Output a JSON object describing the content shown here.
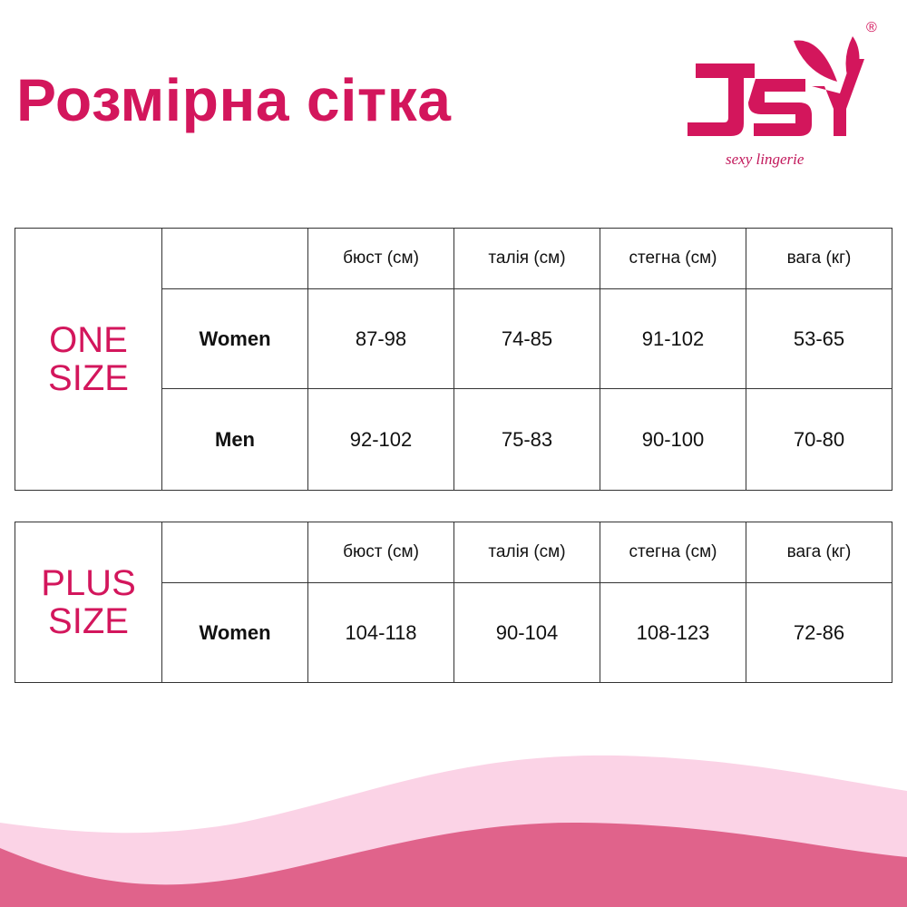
{
  "title": "Розмірна сітка",
  "logo": {
    "text": "JSY",
    "tagline": "sexy lingerie",
    "registered": "®"
  },
  "colors": {
    "accent": "#d3165c",
    "wave_light": "#fbd3e6",
    "wave_dark": "#e0638b"
  },
  "columns": [
    "бюст (см)",
    "талія (см)",
    "стегна (см)",
    "вага (кг)"
  ],
  "tables": [
    {
      "group_line1": "ONE",
      "group_line2": "SIZE",
      "rows": [
        {
          "label": "Women",
          "values": [
            "87-98",
            "74-85",
            "91-102",
            "53-65"
          ]
        },
        {
          "label": "Men",
          "values": [
            "92-102",
            "75-83",
            "90-100",
            "70-80"
          ]
        }
      ]
    },
    {
      "group_line1": "PLUS",
      "group_line2": "SIZE",
      "rows": [
        {
          "label": "Women",
          "values": [
            "104-118",
            "90-104",
            "108-123",
            "72-86"
          ]
        }
      ]
    }
  ]
}
